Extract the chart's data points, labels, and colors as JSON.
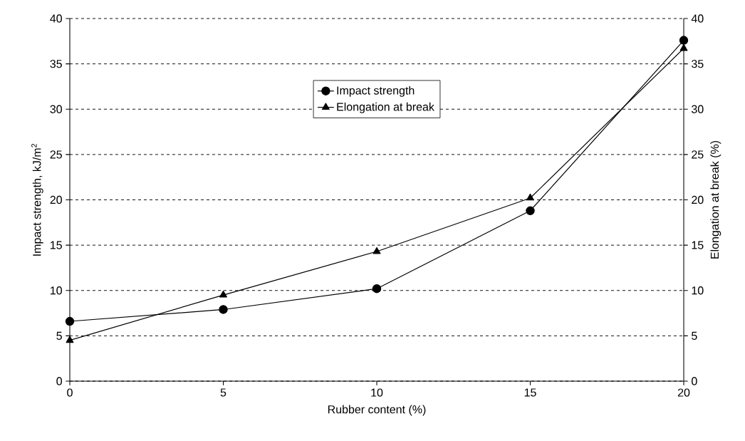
{
  "chart_data": {
    "type": "line",
    "xlabel": "Rubber content (%)",
    "ylabel": "Impact strength, kJ/m$^{2}$",
    "y2label": "Elongation at break (%)",
    "x": [
      0,
      5,
      10,
      15,
      20
    ],
    "series": [
      {
        "name": "Impact strength",
        "color": "#000000",
        "marker": "circle",
        "values": [
          6.6,
          7.9,
          10.2,
          18.8,
          37.6
        ]
      },
      {
        "name": "Elongation at break",
        "color": "#000000",
        "marker": "triangle",
        "axis": "y2",
        "values": [
          4.5,
          9.5,
          14.3,
          20.2,
          36.7
        ]
      }
    ],
    "xlim": [
      0,
      20
    ],
    "xticks": [
      0,
      5,
      10,
      15,
      20
    ],
    "ylim": [
      0,
      40
    ],
    "yticks": [
      0,
      5,
      10,
      15,
      20,
      25,
      30,
      35,
      40
    ],
    "y2lim": [
      0,
      40
    ],
    "y2ticks": [
      0,
      5,
      10,
      15,
      20,
      25,
      30,
      35,
      40
    ],
    "grid": "y",
    "legend": "top",
    "line_style": "solid"
  }
}
